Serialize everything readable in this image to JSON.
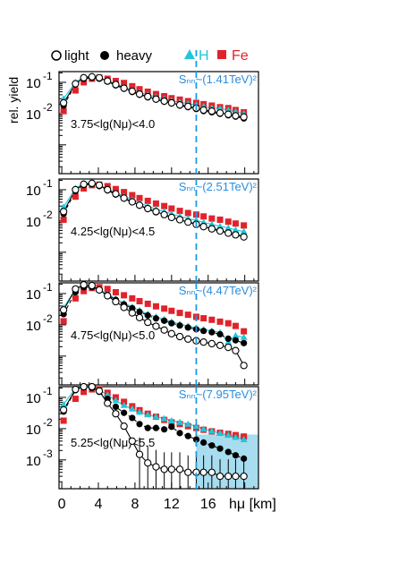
{
  "legend": {
    "light": "light",
    "heavy": "heavy",
    "h": "H",
    "fe": "Fe"
  },
  "ylabel": "rel. yield",
  "xlabel": "hμ [km]",
  "x_ticks": [
    "0",
    "4",
    "8",
    "12",
    "16"
  ],
  "y_tick_labels": {
    "ten": "10",
    "exp_m1": "-1",
    "exp_m2": "-2",
    "exp_m3": "-3"
  },
  "colors": {
    "light_heavy": "#000000",
    "h": "#1ec8d8",
    "fe": "#e2222a",
    "energy_text": "#2a8ee0",
    "dashed_line": "#1a9be6",
    "shaded": "#a8dcef"
  },
  "chart_data": [
    {
      "type": "line",
      "panel_label": "3.75<lg(Nμ)<4.0",
      "energy_label": "Sₙₙ~(1.41TeV)²",
      "xlim": [
        -0.3,
        21.5
      ],
      "ylog": true,
      "ylim": [
        0.00012,
        0.22
      ],
      "x": [
        0.2,
        1.5,
        2.4,
        3.3,
        4.1,
        5.0,
        5.9,
        6.8,
        7.7,
        8.5,
        9.4,
        10.3,
        11.2,
        12.0,
        12.9,
        13.8,
        14.7,
        15.5,
        16.4,
        17.3,
        18.2,
        19.0,
        19.9
      ],
      "series": [
        {
          "name": "light",
          "values": [
            0.022,
            0.09,
            0.14,
            0.15,
            0.14,
            0.11,
            0.085,
            0.065,
            0.052,
            0.042,
            0.035,
            0.029,
            0.025,
            0.022,
            0.019,
            0.017,
            0.015,
            0.013,
            0.012,
            0.0105,
            0.0095,
            0.0085,
            0.0078
          ]
        },
        {
          "name": "heavy",
          "values": [
            0.018,
            0.085,
            0.13,
            0.14,
            0.13,
            0.105,
            0.08,
            0.062,
            0.049,
            0.04,
            0.033,
            0.028,
            0.024,
            0.021,
            0.018,
            0.016,
            0.014,
            0.012,
            0.011,
            0.0098,
            0.0088,
            0.008,
            0.007
          ]
        },
        {
          "name": "H",
          "values": [
            0.03,
            0.1,
            0.15,
            0.155,
            0.14,
            0.11,
            0.088,
            0.07,
            0.057,
            0.047,
            0.04,
            0.034,
            0.029,
            0.026,
            0.023,
            0.021,
            0.019,
            0.017,
            0.015,
            0.0145,
            0.013,
            0.0115,
            0.01
          ]
        },
        {
          "name": "Fe",
          "values": [
            0.012,
            0.055,
            0.1,
            0.13,
            0.14,
            0.13,
            0.11,
            0.095,
            0.075,
            0.06,
            0.05,
            0.042,
            0.036,
            0.031,
            0.028,
            0.025,
            0.022,
            0.02,
            0.018,
            0.016,
            0.015,
            0.013,
            0.011
          ]
        }
      ]
    },
    {
      "type": "line",
      "panel_label": "4.25<lg(Nμ)<4.5",
      "energy_label": "Sₙₙ~(2.51TeV)²",
      "xlim": [
        -0.3,
        21.5
      ],
      "ylog": true,
      "ylim": [
        0.00012,
        0.22
      ],
      "x": [
        0.2,
        1.5,
        2.4,
        3.3,
        4.1,
        5.0,
        5.9,
        6.8,
        7.7,
        8.5,
        9.4,
        10.3,
        11.2,
        12.0,
        12.9,
        13.8,
        14.7,
        15.5,
        16.4,
        17.3,
        18.2,
        19.0,
        19.9
      ],
      "series": [
        {
          "name": "light",
          "values": [
            0.02,
            0.1,
            0.15,
            0.16,
            0.14,
            0.1,
            0.074,
            0.054,
            0.041,
            0.032,
            0.025,
            0.02,
            0.016,
            0.013,
            0.011,
            0.0092,
            0.0078,
            0.0066,
            0.0056,
            0.0048,
            0.0041,
            0.0036,
            0.0031
          ]
        },
        {
          "name": "heavy",
          "values": [
            0.017,
            0.09,
            0.14,
            0.15,
            0.13,
            0.095,
            0.07,
            0.052,
            0.04,
            0.031,
            0.024,
            0.019,
            0.016,
            0.013,
            0.011,
            0.0094,
            0.008,
            0.0068,
            0.0058,
            0.005,
            0.0043,
            0.0037,
            0.0032
          ]
        },
        {
          "name": "H",
          "values": [
            0.028,
            0.11,
            0.16,
            0.165,
            0.14,
            0.105,
            0.08,
            0.061,
            0.047,
            0.037,
            0.03,
            0.024,
            0.02,
            0.017,
            0.014,
            0.012,
            0.0105,
            0.009,
            0.0078,
            0.0068,
            0.006,
            0.0052,
            0.0046
          ]
        },
        {
          "name": "Fe",
          "values": [
            0.011,
            0.06,
            0.11,
            0.14,
            0.145,
            0.13,
            0.105,
            0.084,
            0.067,
            0.054,
            0.044,
            0.036,
            0.03,
            0.025,
            0.021,
            0.018,
            0.016,
            0.014,
            0.012,
            0.011,
            0.0095,
            0.0083,
            0.0072
          ]
        }
      ]
    },
    {
      "type": "line",
      "panel_label": "4.75<lg(Nμ)<5.0",
      "energy_label": "Sₙₙ~(4.47TeV)²",
      "xlim": [
        -0.3,
        21.5
      ],
      "ylog": true,
      "ylim": [
        0.00012,
        0.22
      ],
      "x": [
        0.2,
        1.5,
        2.4,
        3.3,
        4.1,
        5.0,
        5.9,
        6.8,
        7.7,
        8.5,
        9.4,
        10.3,
        11.2,
        12.0,
        12.9,
        13.8,
        14.7,
        15.5,
        16.4,
        17.3,
        18.2,
        19.0,
        19.9
      ],
      "series": [
        {
          "name": "light",
          "values": [
            0.03,
            0.14,
            0.19,
            0.18,
            0.13,
            0.085,
            0.055,
            0.036,
            0.024,
            0.017,
            0.012,
            0.009,
            0.0068,
            0.0052,
            0.0042,
            0.0035,
            0.0031,
            0.0028,
            0.0025,
            0.0022,
            0.0019,
            0.0015,
            0.0005
          ]
        },
        {
          "name": "heavy",
          "values": [
            0.022,
            0.11,
            0.16,
            0.16,
            0.13,
            0.09,
            0.063,
            0.045,
            0.034,
            0.026,
            0.02,
            0.016,
            0.0135,
            0.0112,
            0.0095,
            0.0082,
            0.0072,
            0.0064,
            0.0058,
            0.005,
            0.0036,
            0.0032,
            0.0026
          ]
        },
        {
          "name": "H",
          "values": [
            0.035,
            0.14,
            0.18,
            0.17,
            0.135,
            0.095,
            0.068,
            0.05,
            0.037,
            0.029,
            0.022,
            0.018,
            0.015,
            0.0125,
            0.0105,
            0.0091,
            0.008,
            0.0071,
            0.0064,
            0.0057,
            0.0028,
            0.0045,
            0.004
          ]
        },
        {
          "name": "Fe",
          "values": [
            0.013,
            0.07,
            0.12,
            0.15,
            0.16,
            0.14,
            0.11,
            0.088,
            0.07,
            0.057,
            0.047,
            0.039,
            0.033,
            0.028,
            0.024,
            0.021,
            0.018,
            0.0162,
            0.0145,
            0.0126,
            0.0112,
            0.0092,
            0.0062
          ]
        }
      ]
    },
    {
      "type": "line",
      "panel_label": "5.25<lg(Nμ)<5.5",
      "energy_label": "Sₙₙ~(7.95TeV)²",
      "xlim": [
        -0.3,
        21.5
      ],
      "ylog": true,
      "ylim": [
        0.00012,
        0.22
      ],
      "x": [
        0.2,
        1.5,
        2.4,
        3.3,
        4.1,
        5.0,
        5.9,
        6.8,
        7.7,
        8.5,
        9.4,
        10.3,
        11.2,
        12.0,
        12.9,
        13.8,
        14.7,
        15.5,
        16.4,
        17.3,
        18.2,
        19.0,
        19.9
      ],
      "series": [
        {
          "name": "light",
          "values": [
            0.04,
            0.18,
            0.22,
            0.22,
            0.16,
            0.065,
            0.03,
            0.012,
            0.004,
            0.0015,
            0.0008,
            0.0006,
            0.0005,
            0.0005,
            0.0005,
            0.0004,
            0.0004,
            0.0004,
            0.0004,
            0.0003,
            0.0003,
            0.0003,
            0.0003
          ]
        },
        {
          "name": "heavy",
          "values": [
            0.035,
            0.17,
            0.21,
            0.2,
            0.15,
            0.09,
            0.05,
            0.032,
            0.022,
            0.014,
            0.0105,
            0.0105,
            0.0095,
            0.0115,
            0.0072,
            0.0058,
            0.0045,
            0.0036,
            0.0029,
            0.0023,
            0.0018,
            0.0014,
            0.0011
          ]
        },
        {
          "name": "H",
          "values": [
            0.06,
            0.2,
            0.22,
            0.21,
            0.17,
            0.12,
            0.08,
            0.056,
            0.043,
            0.034,
            0.028,
            0.024,
            0.021,
            0.018,
            0.016,
            0.014,
            0.012,
            0.0098,
            0.0084,
            0.0072,
            0.0062,
            0.0053,
            0.0045
          ]
        },
        {
          "name": "Fe",
          "values": [
            0.018,
            0.09,
            0.15,
            0.18,
            0.18,
            0.14,
            0.1,
            0.072,
            0.052,
            0.039,
            0.03,
            0.024,
            0.019,
            0.016,
            0.014,
            0.012,
            0.0105,
            0.0092,
            0.0082,
            0.0074,
            0.0068,
            0.0062,
            0.0056
          ]
        }
      ]
    }
  ],
  "vertical_line_x": 14.7
}
